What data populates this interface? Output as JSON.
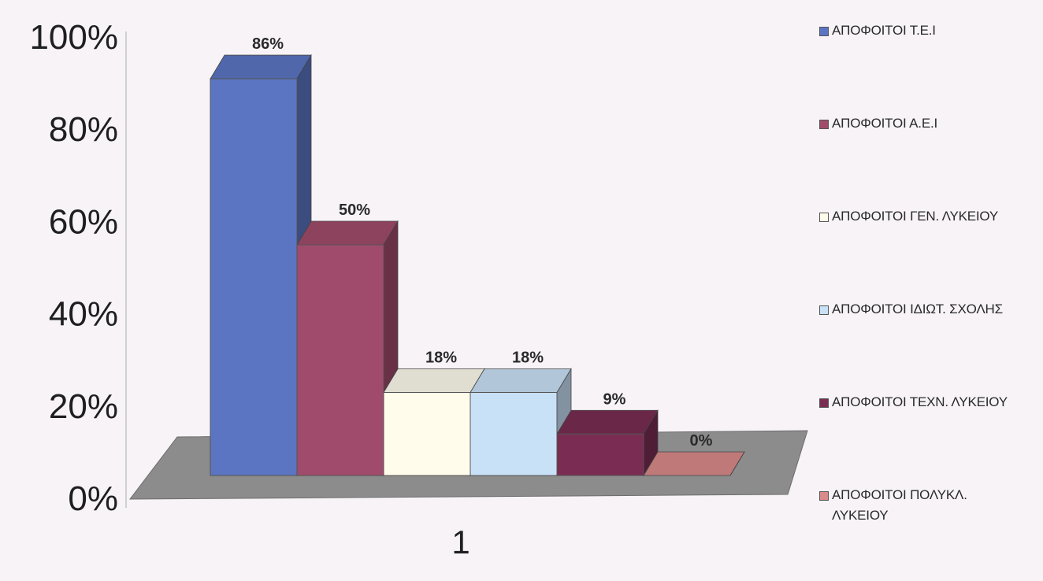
{
  "chart_data": {
    "type": "bar",
    "categories": [
      "1"
    ],
    "series": [
      {
        "name": "ΑΠΟΦΟΙΤΟΙ Τ.Ε.Ι",
        "values": [
          86
        ],
        "label": "86%",
        "color": "#5b75c2"
      },
      {
        "name": "ΑΠΟΦΟΙΤΟΙ Α.Ε.Ι",
        "values": [
          50
        ],
        "label": "50%",
        "color": "#a04b6b"
      },
      {
        "name": "ΑΠΟΦΟΙΤΟΙ ΓΕΝ. ΛΥΚΕΙΟΥ",
        "values": [
          18
        ],
        "label": "18%",
        "color": "#fffcec"
      },
      {
        "name": "ΑΠΟΦΟΙΤΟΙ ΙΔΙΩΤ. ΣΧΟΛΗΣ",
        "values": [
          18
        ],
        "label": "18%",
        "color": "#c9e1f7"
      },
      {
        "name": "ΑΠΟΦΟΙΤΟΙ ΤΕΧΝ. ΛΥΚΕΙΟΥ",
        "values": [
          9
        ],
        "label": "9%",
        "color": "#7a2c52"
      },
      {
        "name": "ΑΠΟΦΟΙΤΟΙ ΠΟΛΥΚΛ. ΛΥΚΕΙΟΥ",
        "values": [
          0
        ],
        "label": "0%",
        "color": "#d98a8a"
      }
    ],
    "ylim": [
      0,
      100
    ],
    "yticks": [
      "0%",
      "20%",
      "40%",
      "60%",
      "80%",
      "100%"
    ],
    "xlabel": "",
    "ylabel": "",
    "title": "",
    "grid": false,
    "legend_position": "right",
    "floor_color": "#8c8c8c",
    "background_color": "#f7f3f7"
  }
}
